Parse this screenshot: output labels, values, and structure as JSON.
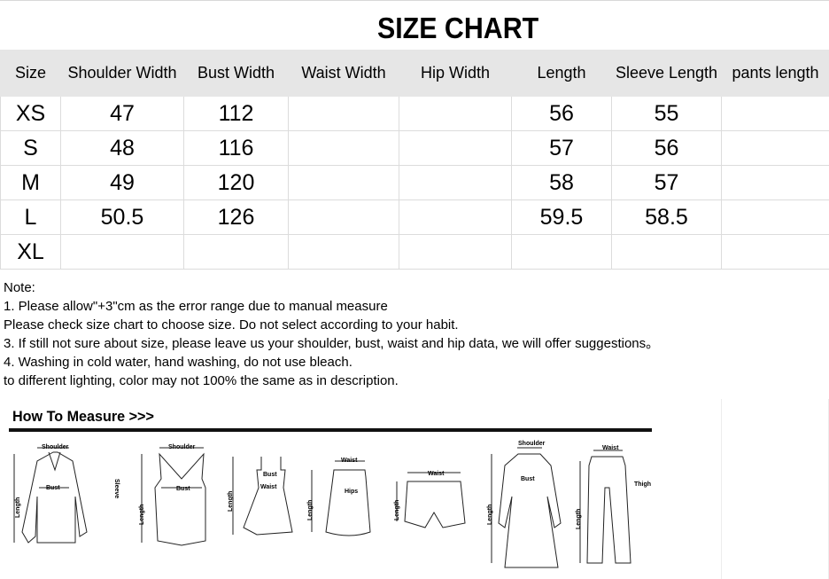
{
  "title": "SIZE CHART",
  "table": {
    "headers": [
      "Size",
      "Shoulder Width",
      "Bust Width",
      "Waist Width",
      "Hip Width",
      "Length",
      "Sleeve Length",
      "pants length"
    ],
    "rows": [
      [
        "XS",
        "47",
        "112",
        "",
        "",
        "56",
        "55",
        ""
      ],
      [
        "S",
        "48",
        "116",
        "",
        "",
        "57",
        "56",
        ""
      ],
      [
        "M",
        "49",
        "120",
        "",
        "",
        "58",
        "57",
        ""
      ],
      [
        "L",
        "50.5",
        "126",
        "",
        "",
        "59.5",
        "58.5",
        ""
      ],
      [
        "XL",
        "",
        "",
        "",
        "",
        "",
        "",
        ""
      ]
    ]
  },
  "notes": [
    "Note:",
    "1. Please allow\"+3\"cm as the error range due to manual measure",
    "Please check size chart to choose size. Do not select according to your habit.",
    "3. If still not sure about size, please leave us your shoulder, bust, waist and hip data, we will offer suggestions。",
    "4. Washing in cold water, hand washing, do not use bleach.",
    "to different lighting, color may not 100% the same as in description."
  ],
  "how_to_measure": {
    "title": "How To Measure >>>",
    "labels": {
      "shoulder": "Shoulder",
      "bust": "Bust",
      "sleeve": "Sleeve",
      "length": "Length",
      "waist": "Waist",
      "hips": "Hips",
      "thigh": "Thigh"
    }
  }
}
